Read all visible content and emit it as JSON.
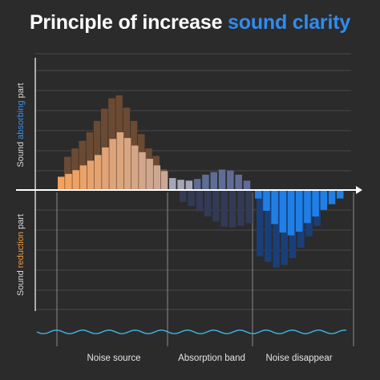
{
  "title": {
    "part1": "Principle of increase ",
    "part2": "sound clarity",
    "accent_color": "#2f8cf0"
  },
  "y_labels": {
    "upper": {
      "prefix": "Sound ",
      "highlight": "absorbing",
      "suffix": " part",
      "highlight_color": "#3a8fe8"
    },
    "lower": {
      "prefix": "Sound ",
      "highlight": "reduction",
      "suffix": " part",
      "highlight_color": "#f19a3e"
    }
  },
  "regions": [
    {
      "label": "Noise source"
    },
    {
      "label": "Absorption band"
    },
    {
      "label": "Noise disappear"
    }
  ],
  "colors": {
    "background": "#2b2b2b",
    "grid": "#4a4a4a",
    "axis": "#ffffff",
    "wave": "#3fb6e6",
    "source_light": "#f3a15c",
    "source_mid": "#c9a898",
    "absorption": "#8c97b8",
    "disappear": "#1f7fe6"
  },
  "chart_data": {
    "type": "bar",
    "description_units": "relative amplitude, 1.0 = tallest bar",
    "series": [
      {
        "segment": "source",
        "front": [
          0.14,
          0.17,
          0.21,
          0.26,
          0.31,
          0.37,
          0.45,
          0.54,
          0.61,
          0.55,
          0.47,
          0.4,
          0.33,
          0.26,
          0.2
        ],
        "back": [
          0.35,
          0.44,
          0.52,
          0.61,
          0.73,
          0.86,
          0.97,
          1.0,
          0.87,
          0.73,
          0.59,
          0.44,
          0.36,
          0.22
        ]
      },
      {
        "segment": "absorption",
        "up": [
          0.14,
          0.12,
          0.11,
          0.13,
          0.18,
          0.21,
          0.24,
          0.23,
          0.18,
          0.11
        ],
        "down": [
          0.14,
          0.19,
          0.25,
          0.31,
          0.37,
          0.43,
          0.44,
          0.42,
          0.39
        ]
      },
      {
        "segment": "disappear",
        "front": [
          -0.09,
          -0.22,
          -0.36,
          -0.45,
          -0.48,
          -0.44,
          -0.35,
          -0.28,
          -0.21,
          -0.15,
          -0.09
        ],
        "back": [
          -0.7,
          -0.76,
          -0.82,
          -0.79,
          -0.72,
          -0.61,
          -0.49,
          -0.38
        ]
      }
    ]
  }
}
